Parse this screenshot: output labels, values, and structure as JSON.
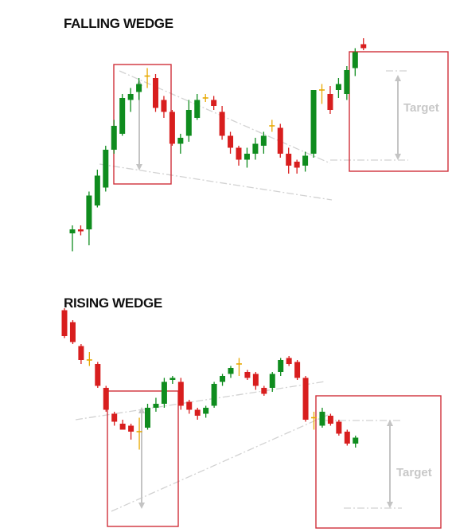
{
  "chart_data": [
    {
      "type": "candlestick",
      "title": "FALLING WEDGE",
      "annotations": {
        "target_label": "Target"
      },
      "colors": {
        "up": "#0f8c1e",
        "down": "#d81e1e",
        "doji": "#e8a800",
        "box": "#d0303a",
        "trendline": "#d2d2d2",
        "arrow": "#c4c4c4"
      },
      "candles": [
        {
          "o": 0.12,
          "h": 0.16,
          "l": 0.03,
          "c": 0.14
        },
        {
          "o": 0.14,
          "h": 0.16,
          "l": 0.11,
          "c": 0.13
        },
        {
          "o": 0.14,
          "h": 0.33,
          "l": 0.06,
          "c": 0.31
        },
        {
          "o": 0.26,
          "h": 0.44,
          "l": 0.25,
          "c": 0.41
        },
        {
          "o": 0.35,
          "h": 0.56,
          "l": 0.33,
          "c": 0.54
        },
        {
          "o": 0.54,
          "h": 0.69,
          "l": 0.52,
          "c": 0.66
        },
        {
          "o": 0.62,
          "h": 0.82,
          "l": 0.61,
          "c": 0.8
        },
        {
          "o": 0.79,
          "h": 0.85,
          "l": 0.73,
          "c": 0.82
        },
        {
          "o": 0.83,
          "h": 0.9,
          "l": 0.79,
          "c": 0.87
        },
        {
          "o": 0.91,
          "h": 0.95,
          "l": 0.85,
          "c": 0.91
        },
        {
          "o": 0.9,
          "h": 0.92,
          "l": 0.73,
          "c": 0.75
        },
        {
          "o": 0.79,
          "h": 0.81,
          "l": 0.7,
          "c": 0.73
        },
        {
          "o": 0.73,
          "h": 0.74,
          "l": 0.56,
          "c": 0.57
        },
        {
          "o": 0.57,
          "h": 0.62,
          "l": 0.52,
          "c": 0.6
        },
        {
          "o": 0.61,
          "h": 0.79,
          "l": 0.58,
          "c": 0.74
        },
        {
          "o": 0.7,
          "h": 0.82,
          "l": 0.69,
          "c": 0.79
        },
        {
          "o": 0.8,
          "h": 0.82,
          "l": 0.78,
          "c": 0.8
        },
        {
          "o": 0.79,
          "h": 0.81,
          "l": 0.74,
          "c": 0.76
        },
        {
          "o": 0.73,
          "h": 0.76,
          "l": 0.59,
          "c": 0.61
        },
        {
          "o": 0.61,
          "h": 0.63,
          "l": 0.52,
          "c": 0.55
        },
        {
          "o": 0.55,
          "h": 0.56,
          "l": 0.46,
          "c": 0.49
        },
        {
          "o": 0.49,
          "h": 0.55,
          "l": 0.45,
          "c": 0.52
        },
        {
          "o": 0.52,
          "h": 0.6,
          "l": 0.49,
          "c": 0.57
        },
        {
          "o": 0.56,
          "h": 0.63,
          "l": 0.52,
          "c": 0.61
        },
        {
          "o": 0.66,
          "h": 0.69,
          "l": 0.63,
          "c": 0.66
        },
        {
          "o": 0.65,
          "h": 0.67,
          "l": 0.5,
          "c": 0.52
        },
        {
          "o": 0.52,
          "h": 0.55,
          "l": 0.42,
          "c": 0.46
        },
        {
          "o": 0.48,
          "h": 0.49,
          "l": 0.42,
          "c": 0.45
        },
        {
          "o": 0.46,
          "h": 0.53,
          "l": 0.43,
          "c": 0.51
        },
        {
          "o": 0.52,
          "h": 0.84,
          "l": 0.5,
          "c": 0.84
        },
        {
          "o": 0.84,
          "h": 0.87,
          "l": 0.77,
          "c": 0.84
        },
        {
          "o": 0.82,
          "h": 0.86,
          "l": 0.72,
          "c": 0.74
        },
        {
          "o": 0.84,
          "h": 0.9,
          "l": 0.8,
          "c": 0.87
        },
        {
          "o": 0.82,
          "h": 0.96,
          "l": 0.79,
          "c": 0.94
        },
        {
          "o": 0.95,
          "h": 1.05,
          "l": 0.91,
          "c": 1.03
        },
        {
          "o": 1.07,
          "h": 1.1,
          "l": 1.04,
          "c": 1.05
        }
      ]
    },
    {
      "type": "candlestick",
      "title": "RISING WEDGE",
      "annotations": {
        "target_label": "Target"
      },
      "colors": {
        "up": "#0f8c1e",
        "down": "#d81e1e",
        "doji": "#e8a800",
        "box": "#d0303a",
        "trendline": "#d2d2d2",
        "arrow": "#c4c4c4"
      },
      "candles": [
        {
          "o": 1.13,
          "h": 1.14,
          "l": 0.99,
          "c": 1.0
        },
        {
          "o": 1.07,
          "h": 1.08,
          "l": 0.96,
          "c": 0.97
        },
        {
          "o": 0.95,
          "h": 0.96,
          "l": 0.86,
          "c": 0.88
        },
        {
          "o": 0.88,
          "h": 0.92,
          "l": 0.85,
          "c": 0.88
        },
        {
          "o": 0.86,
          "h": 0.87,
          "l": 0.74,
          "c": 0.75
        },
        {
          "o": 0.74,
          "h": 0.75,
          "l": 0.62,
          "c": 0.63
        },
        {
          "o": 0.61,
          "h": 0.62,
          "l": 0.55,
          "c": 0.57
        },
        {
          "o": 0.56,
          "h": 0.58,
          "l": 0.53,
          "c": 0.53
        },
        {
          "o": 0.55,
          "h": 0.56,
          "l": 0.48,
          "c": 0.52
        },
        {
          "o": 0.52,
          "h": 0.59,
          "l": 0.43,
          "c": 0.52
        },
        {
          "o": 0.54,
          "h": 0.66,
          "l": 0.53,
          "c": 0.64
        },
        {
          "o": 0.64,
          "h": 0.69,
          "l": 0.62,
          "c": 0.66
        },
        {
          "o": 0.66,
          "h": 0.79,
          "l": 0.64,
          "c": 0.77
        },
        {
          "o": 0.78,
          "h": 0.8,
          "l": 0.76,
          "c": 0.79
        },
        {
          "o": 0.77,
          "h": 0.79,
          "l": 0.63,
          "c": 0.65
        },
        {
          "o": 0.67,
          "h": 0.68,
          "l": 0.61,
          "c": 0.63
        },
        {
          "o": 0.63,
          "h": 0.64,
          "l": 0.58,
          "c": 0.6
        },
        {
          "o": 0.61,
          "h": 0.65,
          "l": 0.59,
          "c": 0.64
        },
        {
          "o": 0.65,
          "h": 0.77,
          "l": 0.64,
          "c": 0.76
        },
        {
          "o": 0.77,
          "h": 0.81,
          "l": 0.75,
          "c": 0.8
        },
        {
          "o": 0.81,
          "h": 0.85,
          "l": 0.79,
          "c": 0.84
        },
        {
          "o": 0.86,
          "h": 0.89,
          "l": 0.8,
          "c": 0.86
        },
        {
          "o": 0.82,
          "h": 0.83,
          "l": 0.78,
          "c": 0.79
        },
        {
          "o": 0.81,
          "h": 0.82,
          "l": 0.73,
          "c": 0.75
        },
        {
          "o": 0.74,
          "h": 0.75,
          "l": 0.7,
          "c": 0.71
        },
        {
          "o": 0.74,
          "h": 0.82,
          "l": 0.72,
          "c": 0.81
        },
        {
          "o": 0.82,
          "h": 0.89,
          "l": 0.8,
          "c": 0.88
        },
        {
          "o": 0.89,
          "h": 0.9,
          "l": 0.85,
          "c": 0.86
        },
        {
          "o": 0.87,
          "h": 0.88,
          "l": 0.78,
          "c": 0.79
        },
        {
          "o": 0.79,
          "h": 0.8,
          "l": 0.57,
          "c": 0.58
        },
        {
          "o": 0.59,
          "h": 0.62,
          "l": 0.53,
          "c": 0.59
        },
        {
          "o": 0.55,
          "h": 0.64,
          "l": 0.54,
          "c": 0.62
        },
        {
          "o": 0.6,
          "h": 0.61,
          "l": 0.55,
          "c": 0.56
        },
        {
          "o": 0.57,
          "h": 0.58,
          "l": 0.5,
          "c": 0.51
        },
        {
          "o": 0.52,
          "h": 0.53,
          "l": 0.45,
          "c": 0.46
        },
        {
          "o": 0.46,
          "h": 0.5,
          "l": 0.44,
          "c": 0.49
        }
      ]
    }
  ]
}
